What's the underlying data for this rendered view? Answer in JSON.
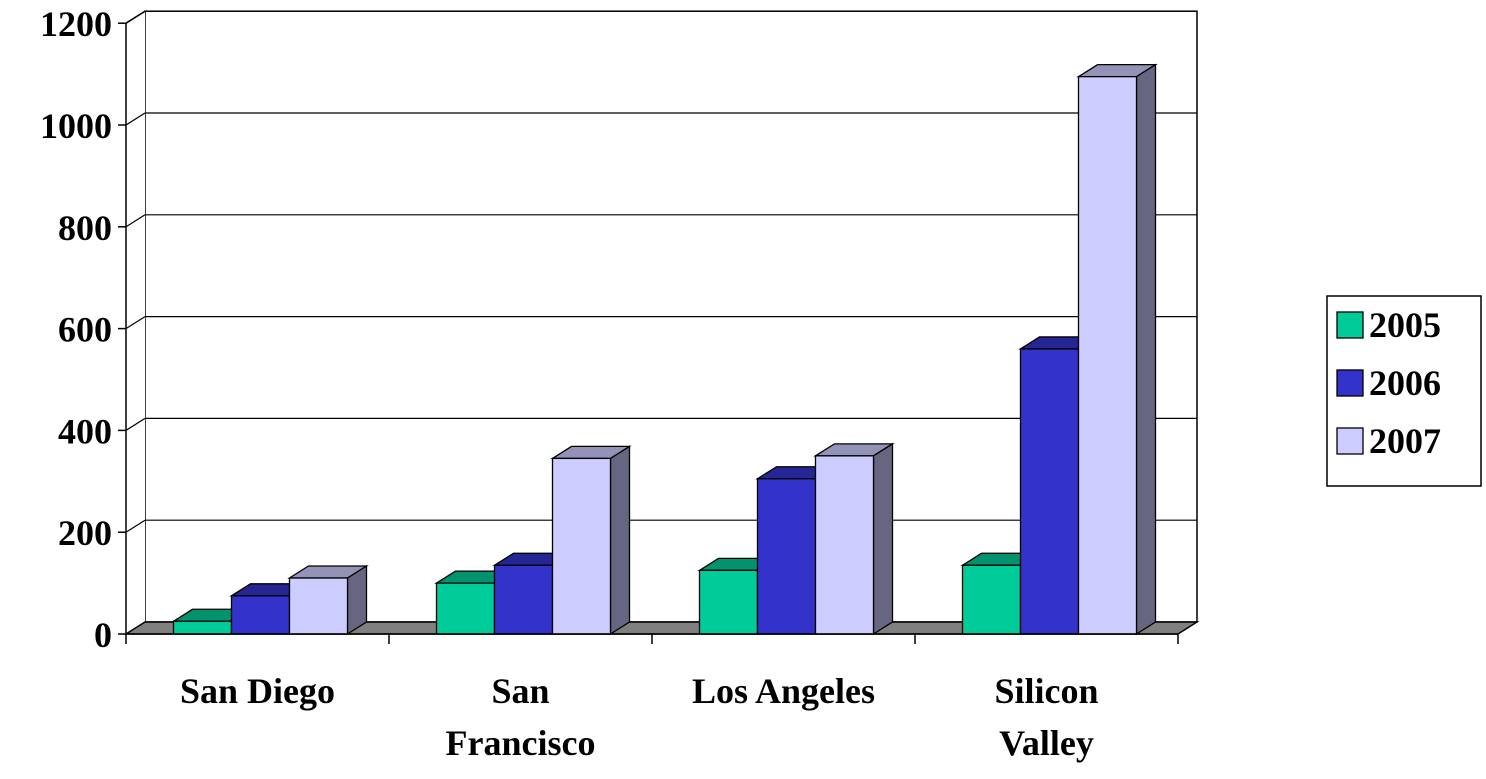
{
  "chart_data": {
    "type": "bar",
    "title": "",
    "xlabel": "",
    "ylabel": "",
    "ylim": [
      0,
      1200
    ],
    "yticks": [
      0,
      200,
      400,
      600,
      800,
      1000,
      1200
    ],
    "grid": true,
    "legend_position": "right",
    "categories": [
      {
        "lines": [
          "San Diego"
        ]
      },
      {
        "lines": [
          "San",
          "Francisco"
        ]
      },
      {
        "lines": [
          "Los Angeles"
        ]
      },
      {
        "lines": [
          "Silicon",
          "Valley"
        ]
      }
    ],
    "series": [
      {
        "name": "2005",
        "color": "#00cc99",
        "values": [
          25,
          100,
          125,
          135
        ]
      },
      {
        "name": "2006",
        "color": "#3333cc",
        "values": [
          75,
          135,
          305,
          560
        ]
      },
      {
        "name": "2007",
        "color": "#ccccff",
        "values": [
          110,
          345,
          350,
          1095
        ]
      }
    ]
  }
}
